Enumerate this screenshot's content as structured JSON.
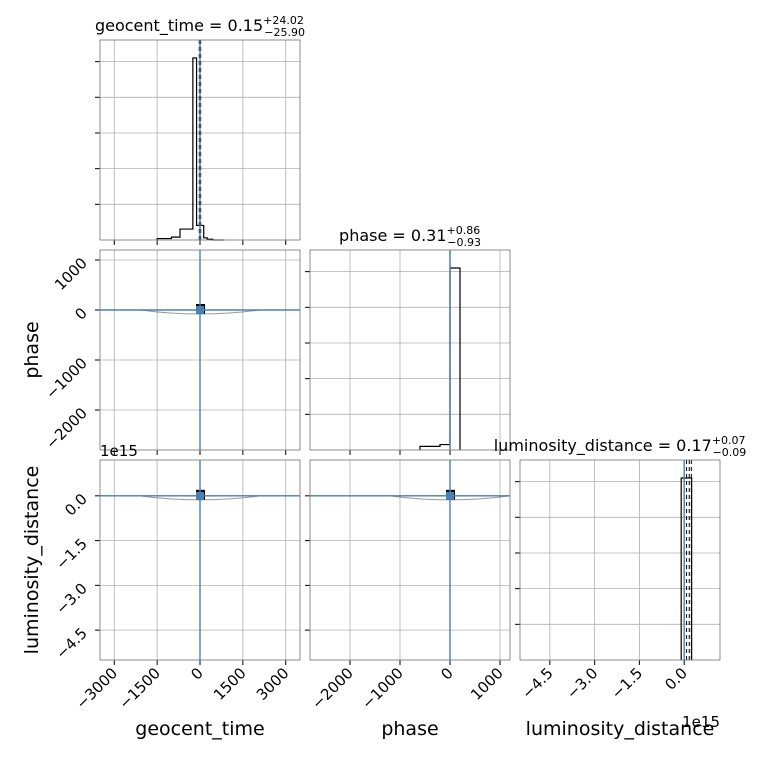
{
  "chart_data": {
    "type": "corner",
    "parameters": [
      {
        "name": "geocent_time",
        "label": "geocent_time",
        "range": [
          -3500,
          3500
        ],
        "ticks": [
          -3000,
          -1500,
          0,
          1500,
          3000
        ],
        "tick_labels": [
          "−3000",
          "−1500",
          "0",
          "1500",
          "3000"
        ],
        "title": {
          "main": "geocent_time = 0.15",
          "plus": "+24.02",
          "minus": "−25.90"
        },
        "median": 0.15,
        "quantiles": [
          -25.75,
          24.17
        ],
        "hist": {
          "edges": [
            -1500,
            -1000,
            -700,
            -250,
            -120,
            130,
            250,
            450,
            850
          ],
          "counts": [
            0.008,
            0.016,
            0.06,
            1.0,
            0.08,
            0.012,
            0.004,
            0
          ]
        }
      },
      {
        "name": "phase",
        "label": "phase",
        "range": [
          -2800,
          1200
        ],
        "ticks": [
          -2000,
          -1000,
          0,
          1000
        ],
        "tick_labels": [
          "−2000",
          "−1000",
          "0",
          "1000"
        ],
        "title": {
          "main": "phase = 0.31",
          "plus": "+0.86",
          "minus": "−0.93"
        },
        "median": 0.31,
        "quantiles": [
          -0.62,
          1.17
        ],
        "hist": {
          "edges": [
            -600,
            -200,
            0,
            200
          ],
          "counts": [
            0.02,
            0.03,
            1.0
          ]
        }
      },
      {
        "name": "luminosity_distance",
        "label": "luminosity_distance",
        "range": [
          -5.5,
          1.2
        ],
        "ticks": [
          -4.5,
          -3.0,
          -1.5,
          0.0
        ],
        "tick_labels": [
          "−4.5",
          "−3.0",
          "−1.5",
          "0.0"
        ],
        "offset_label": "1e15",
        "title": {
          "main": "luminosity_distance = 0.17",
          "plus": "+0.07",
          "minus": "−0.09"
        },
        "median": 0.17,
        "quantiles": [
          0.08,
          0.24
        ],
        "hist": {
          "edges": [
            -0.1,
            0.25
          ],
          "counts": [
            1.0
          ]
        }
      }
    ],
    "truth": {
      "geocent_time": 0,
      "phase": 0,
      "luminosity_distance": 0
    },
    "truth_color": "#4682b4",
    "hist_color": "#000000",
    "grid": true
  }
}
